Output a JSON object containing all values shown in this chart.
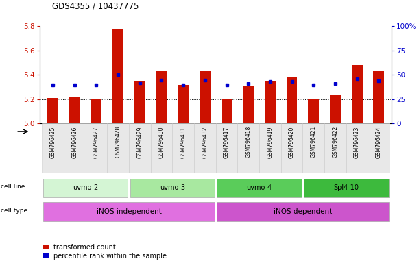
{
  "title": "GDS4355 / 10437775",
  "samples": [
    "GSM796425",
    "GSM796426",
    "GSM796427",
    "GSM796428",
    "GSM796429",
    "GSM796430",
    "GSM796431",
    "GSM796432",
    "GSM796417",
    "GSM796418",
    "GSM796419",
    "GSM796420",
    "GSM796421",
    "GSM796422",
    "GSM796423",
    "GSM796424"
  ],
  "red_values": [
    5.21,
    5.22,
    5.2,
    5.78,
    5.35,
    5.43,
    5.32,
    5.43,
    5.2,
    5.31,
    5.35,
    5.38,
    5.2,
    5.24,
    5.48,
    5.43
  ],
  "blue_values": [
    40,
    40,
    40,
    50,
    42,
    45,
    40,
    45,
    40,
    41,
    43,
    43,
    40,
    41,
    46,
    44
  ],
  "ylim_left": [
    5.0,
    5.8
  ],
  "ylim_right": [
    0,
    100
  ],
  "yticks_left": [
    5.0,
    5.2,
    5.4,
    5.6,
    5.8
  ],
  "yticks_right": [
    0,
    25,
    50,
    75,
    100
  ],
  "ytick_labels_right": [
    "0",
    "25",
    "50",
    "75",
    "100%"
  ],
  "cell_line_groups": [
    {
      "label": "uvmo-2",
      "start": 0,
      "end": 3,
      "color": "#d4f5d4"
    },
    {
      "label": "uvmo-3",
      "start": 4,
      "end": 7,
      "color": "#a8e8a0"
    },
    {
      "label": "uvmo-4",
      "start": 8,
      "end": 11,
      "color": "#5acc5a"
    },
    {
      "label": "Spl4-10",
      "start": 12,
      "end": 15,
      "color": "#3dba3d"
    }
  ],
  "cell_type_groups": [
    {
      "label": "iNOS independent",
      "start": 0,
      "end": 7,
      "color": "#e070e0"
    },
    {
      "label": "iNOS dependent",
      "start": 8,
      "end": 15,
      "color": "#cc55cc"
    }
  ],
  "bar_color": "#cc1100",
  "dot_color": "#0000cc",
  "legend_red": "transformed count",
  "legend_blue": "percentile rank within the sample",
  "bar_width": 0.5,
  "grid_lines": [
    5.2,
    5.4,
    5.6
  ]
}
